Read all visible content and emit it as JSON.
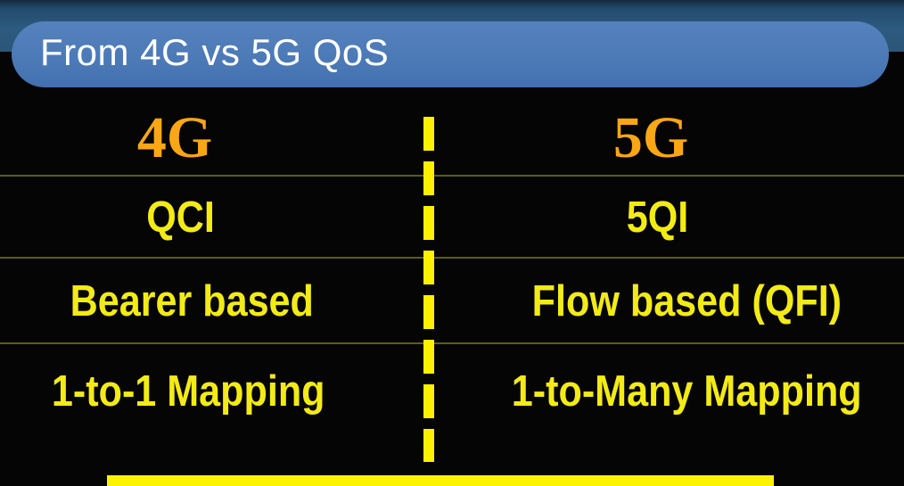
{
  "header": {
    "title": "From 4G vs 5G QoS"
  },
  "table": {
    "left": {
      "header": "4G",
      "rows": [
        "QCI",
        "Bearer based",
        "1-to-1 Mapping"
      ]
    },
    "right": {
      "header": "5G",
      "rows": [
        "5QI",
        "Flow based (QFI)",
        "1-to-Many Mapping"
      ]
    }
  },
  "colors": {
    "background_black": "#050505",
    "band_blue": "#2d5a80",
    "band_blue_dark": "#13293d",
    "title_bar_blue": "#4a78b5",
    "title_text_white": "#ffffff",
    "header_orange": "#fba714",
    "row_text_yellow": "#f3eb16",
    "divider_yellow": "#fbf200",
    "separator_olive": "#5a5e18",
    "bottom_bar_yellow": "#fcf303"
  }
}
